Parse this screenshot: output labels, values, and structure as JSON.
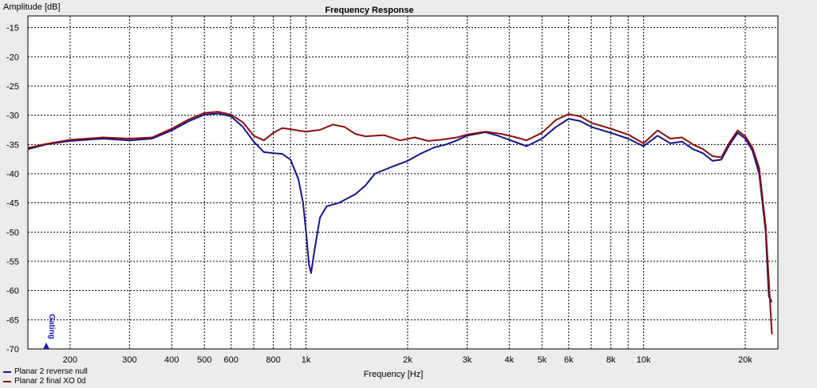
{
  "chart_data": {
    "type": "line",
    "title": "Frequency Response",
    "ylabel": "Amplitude [dB]",
    "xlabel": "Frequency [Hz]",
    "xscale": "log",
    "xlim": [
      150,
      25000
    ],
    "ylim": [
      -70,
      -13
    ],
    "grid": true,
    "legend_position": "bottom-left",
    "y_ticks": [
      -15,
      -20,
      -25,
      -30,
      -35,
      -40,
      -45,
      -50,
      -55,
      -60,
      -65,
      -70
    ],
    "x_ticks": [
      {
        "value": 200,
        "label": "200"
      },
      {
        "value": 300,
        "label": "300"
      },
      {
        "value": 400,
        "label": "400"
      },
      {
        "value": 500,
        "label": "500"
      },
      {
        "value": 600,
        "label": "600"
      },
      {
        "value": 800,
        "label": "800"
      },
      {
        "value": 1000,
        "label": "1k"
      },
      {
        "value": 2000,
        "label": "2k"
      },
      {
        "value": 3000,
        "label": "3k"
      },
      {
        "value": 4000,
        "label": "4k"
      },
      {
        "value": 5000,
        "label": "5k"
      },
      {
        "value": 6000,
        "label": "6k"
      },
      {
        "value": 8000,
        "label": "8k"
      },
      {
        "value": 10000,
        "label": "10k"
      },
      {
        "value": 20000,
        "label": "20k"
      }
    ],
    "marker": {
      "label": "Gating",
      "x": 170,
      "color": "#1a1aa8"
    },
    "series": [
      {
        "name": "Planar 2 reverse null",
        "color": "#16168c",
        "points": [
          [
            150,
            -35.8
          ],
          [
            170,
            -35.0
          ],
          [
            200,
            -34.4
          ],
          [
            250,
            -34.0
          ],
          [
            300,
            -34.3
          ],
          [
            350,
            -34.0
          ],
          [
            400,
            -32.6
          ],
          [
            450,
            -31.0
          ],
          [
            500,
            -29.9
          ],
          [
            550,
            -29.7
          ],
          [
            600,
            -30.2
          ],
          [
            650,
            -32.0
          ],
          [
            700,
            -34.5
          ],
          [
            750,
            -36.3
          ],
          [
            800,
            -36.5
          ],
          [
            850,
            -36.6
          ],
          [
            900,
            -37.6
          ],
          [
            950,
            -41.0
          ],
          [
            980,
            -45.0
          ],
          [
            1000,
            -50.0
          ],
          [
            1020,
            -55.5
          ],
          [
            1035,
            -57.0
          ],
          [
            1060,
            -53.0
          ],
          [
            1100,
            -47.5
          ],
          [
            1150,
            -45.6
          ],
          [
            1250,
            -45.0
          ],
          [
            1400,
            -43.5
          ],
          [
            1500,
            -42.0
          ],
          [
            1600,
            -40.0
          ],
          [
            1800,
            -38.8
          ],
          [
            2000,
            -37.8
          ],
          [
            2200,
            -36.5
          ],
          [
            2400,
            -35.5
          ],
          [
            2600,
            -35.0
          ],
          [
            2800,
            -34.3
          ],
          [
            3000,
            -33.5
          ],
          [
            3400,
            -32.9
          ],
          [
            3700,
            -33.5
          ],
          [
            4000,
            -34.2
          ],
          [
            4500,
            -35.3
          ],
          [
            5000,
            -34.0
          ],
          [
            5500,
            -32.0
          ],
          [
            6000,
            -30.6
          ],
          [
            6500,
            -31.0
          ],
          [
            7000,
            -32.0
          ],
          [
            8000,
            -33.0
          ],
          [
            9000,
            -34.0
          ],
          [
            10000,
            -35.3
          ],
          [
            11000,
            -33.5
          ],
          [
            12000,
            -34.8
          ],
          [
            13000,
            -34.5
          ],
          [
            14000,
            -35.8
          ],
          [
            15000,
            -36.5
          ],
          [
            16000,
            -37.8
          ],
          [
            17000,
            -37.6
          ],
          [
            18000,
            -35.0
          ],
          [
            19000,
            -33.0
          ],
          [
            20000,
            -34.0
          ],
          [
            21000,
            -36.0
          ],
          [
            22000,
            -40.0
          ],
          [
            23000,
            -50.0
          ],
          [
            23500,
            -61.0
          ],
          [
            24000,
            -62.0
          ]
        ]
      },
      {
        "name": "Planar 2 final XO 0d",
        "color": "#8a1010",
        "points": [
          [
            150,
            -35.6
          ],
          [
            170,
            -34.9
          ],
          [
            200,
            -34.2
          ],
          [
            250,
            -33.8
          ],
          [
            300,
            -34.0
          ],
          [
            350,
            -33.8
          ],
          [
            400,
            -32.3
          ],
          [
            450,
            -30.7
          ],
          [
            500,
            -29.6
          ],
          [
            550,
            -29.4
          ],
          [
            600,
            -29.9
          ],
          [
            650,
            -31.2
          ],
          [
            700,
            -33.5
          ],
          [
            750,
            -34.3
          ],
          [
            800,
            -33.0
          ],
          [
            850,
            -32.2
          ],
          [
            900,
            -32.4
          ],
          [
            1000,
            -32.8
          ],
          [
            1100,
            -32.5
          ],
          [
            1200,
            -31.6
          ],
          [
            1300,
            -32.0
          ],
          [
            1400,
            -33.2
          ],
          [
            1500,
            -33.6
          ],
          [
            1700,
            -33.4
          ],
          [
            1900,
            -34.3
          ],
          [
            2100,
            -33.8
          ],
          [
            2300,
            -34.4
          ],
          [
            2500,
            -34.2
          ],
          [
            2800,
            -33.8
          ],
          [
            3000,
            -33.3
          ],
          [
            3400,
            -32.8
          ],
          [
            3800,
            -33.2
          ],
          [
            4200,
            -33.8
          ],
          [
            4500,
            -34.3
          ],
          [
            5000,
            -33.0
          ],
          [
            5500,
            -30.8
          ],
          [
            6000,
            -29.8
          ],
          [
            6500,
            -30.2
          ],
          [
            7000,
            -31.3
          ],
          [
            8000,
            -32.3
          ],
          [
            9000,
            -33.3
          ],
          [
            10000,
            -34.8
          ],
          [
            11000,
            -32.6
          ],
          [
            12000,
            -34.0
          ],
          [
            13000,
            -33.8
          ],
          [
            14000,
            -35.0
          ],
          [
            15000,
            -35.8
          ],
          [
            16000,
            -37.0
          ],
          [
            17000,
            -37.2
          ],
          [
            18000,
            -34.6
          ],
          [
            19000,
            -32.6
          ],
          [
            20000,
            -33.6
          ],
          [
            21000,
            -35.5
          ],
          [
            22000,
            -39.0
          ],
          [
            23000,
            -49.0
          ],
          [
            24000,
            -67.5
          ]
        ]
      }
    ]
  }
}
